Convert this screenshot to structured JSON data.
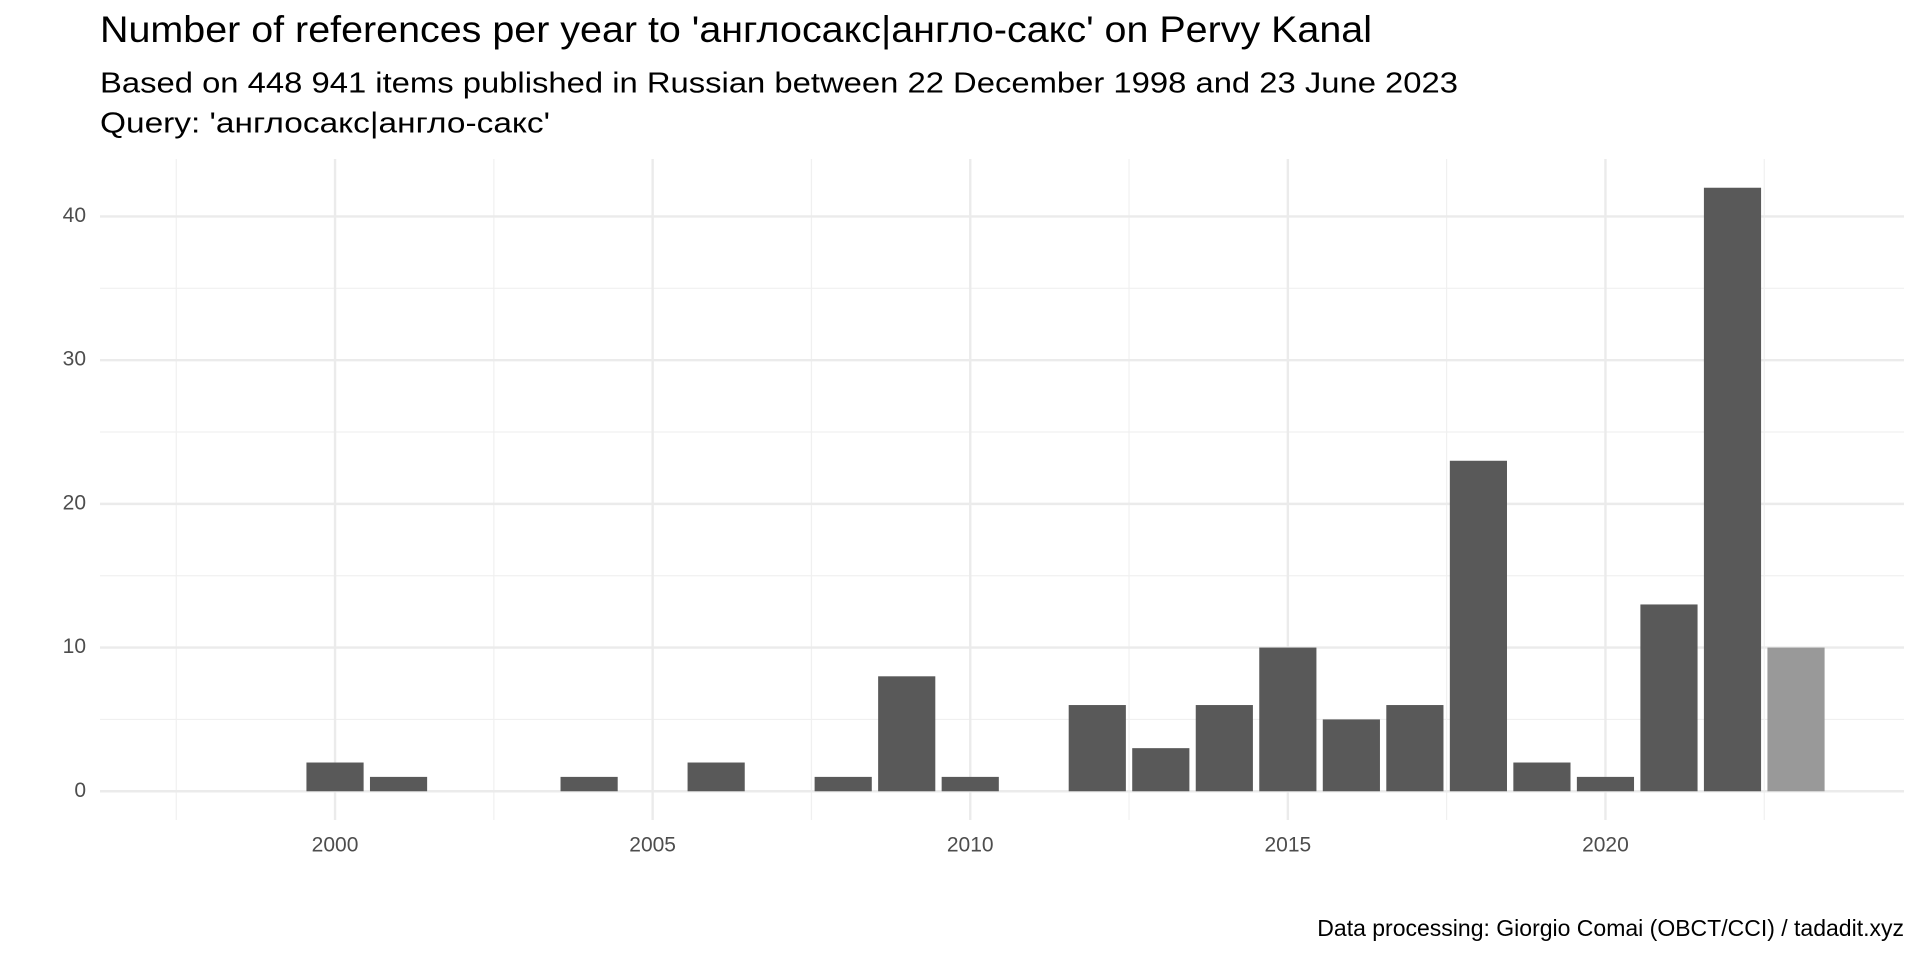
{
  "chart_data": {
    "type": "bar",
    "title": "Number of references per year to 'англосакс|англо-сакс' on Pervy Kanal",
    "subtitle": "Based on 448 941 items published in Russian between 22 December 1998 and 23 June 2023",
    "query": "Query: 'англосакс|англо-сакс'",
    "caption": "Data processing: Giorgio Comai (OBCT/CCI) / tadadit.xyz",
    "x": [
      2000,
      2001,
      2004,
      2006,
      2008,
      2009,
      2010,
      2012,
      2013,
      2014,
      2015,
      2016,
      2017,
      2018,
      2019,
      2020,
      2021,
      2022,
      2023
    ],
    "values": [
      2,
      1,
      1,
      2,
      1,
      8,
      1,
      6,
      3,
      6,
      10,
      5,
      6,
      23,
      2,
      1,
      13,
      42,
      10
    ],
    "colors": [
      "#595959",
      "#595959",
      "#595959",
      "#595959",
      "#595959",
      "#595959",
      "#595959",
      "#595959",
      "#595959",
      "#595959",
      "#595959",
      "#595959",
      "#595959",
      "#595959",
      "#595959",
      "#595959",
      "#595959",
      "#595959",
      "#999999"
    ],
    "xlim": [
      1996.3,
      2024.7
    ],
    "xticks": [
      2000,
      2005,
      2010,
      2015,
      2020
    ],
    "ylim": [
      -2,
      44
    ],
    "yticks": [
      0,
      10,
      20,
      30,
      40
    ],
    "grid": true
  }
}
